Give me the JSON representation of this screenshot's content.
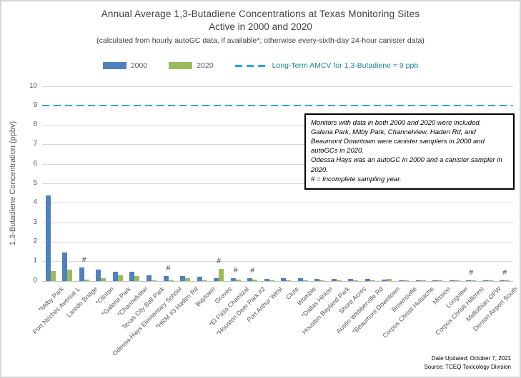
{
  "header": {
    "title_line1": "Annual Average 1,3-Butadiene Concentrations at Texas Monitoring Sites",
    "title_line2": "Active in 2000 and 2020",
    "subtitle": "(calculated from hourly autoGC data, if available*; otherwise every-sixth-day 24-hour canister data)"
  },
  "legend": {
    "series_2000_label": "2000",
    "series_2020_label": "2020",
    "amcv_label": "Long-Term AMCV for 1,3-Butadiene = 9 ppb"
  },
  "colors": {
    "bar_2000": "#4f81bd",
    "bar_2020": "#9bbb59",
    "amcv_line": "#27aae1",
    "grid": "#d9d9d9",
    "axis_text": "#595959",
    "title_text": "#3f3f3f"
  },
  "annotation_box": {
    "lines": [
      "Monitors with data in both 2000 and 2020 were included.",
      "Galena Park, Milby Park, Channelview, Haden Rd, and Beaumont Downtown were canister samplers in 2000 and autoGCs in 2020.",
      "Odessa Hays was an autoGC in 2000 and a canister sampler in 2020.",
      "# = Incomplete sampling year."
    ]
  },
  "footer": {
    "date_line": "Date Updated: October 7, 2021",
    "source_line": "Source: TCEQ Toxicology Division"
  },
  "chart_data": {
    "type": "bar",
    "title": "Annual Average 1,3-Butadiene Concentrations at Texas Monitoring Sites Active in 2000 and 2020",
    "subtitle": "(calculated from hourly autoGC data, if available*; otherwise every-sixth-day 24-hour canister data)",
    "xlabel": "",
    "ylabel": "1,3-Butadiene Concentration (ppbv)",
    "ylim": [
      0,
      10
    ],
    "yticks": [
      0,
      1,
      2,
      3,
      4,
      5,
      6,
      7,
      8,
      9,
      10
    ],
    "grid": true,
    "legend_position": "top",
    "reference_line": {
      "value": 9,
      "label": "Long-Term AMCV for 1,3-Butadiene = 9 ppb",
      "style": "dashed"
    },
    "incomplete_marker": "#",
    "incomplete_marker_meaning": "Incomplete sampling year",
    "categories": [
      "*Milby Park",
      "Port Neches Avenue L",
      "Laredo Bridge",
      "*Clinton",
      "*Galena Park",
      "*Channelview",
      "Texas City Ball Park",
      "Odessa-Hays Elementary School",
      "*HRM #3 Haden Rd",
      "Baytown",
      "Groves",
      "*El Paso Chamizal",
      "*Houston Deer Park #2",
      "Port Arthur West",
      "Clute",
      "Womble",
      "*Dallas Hinton",
      "Houston Bayland Park",
      "Shore Acres",
      "Austin Webberville Rd",
      "*Beaumont Downtown",
      "Brownsville",
      "Corpus Christi Huisache",
      "Mission",
      "Longview",
      "Corpus Christi Hillcrest",
      "Midlothian OFW",
      "Denton Airport South"
    ],
    "series": [
      {
        "name": "2000",
        "values": [
          4.4,
          1.45,
          0.7,
          0.6,
          0.48,
          0.46,
          0.28,
          0.26,
          0.24,
          0.22,
          0.15,
          0.16,
          0.14,
          0.12,
          0.13,
          0.13,
          0.12,
          0.1,
          0.1,
          0.1,
          0.08,
          0.04,
          0.02,
          0.01,
          0.01,
          0.01,
          0.01,
          0.01
        ]
      },
      {
        "name": "2020",
        "values": [
          0.5,
          0.6,
          0.06,
          0.13,
          0.3,
          0.27,
          0.02,
          0.02,
          0.15,
          0.03,
          0.63,
          0.06,
          0.06,
          0.04,
          0.01,
          0.02,
          0.03,
          0.01,
          0.01,
          0.02,
          0.1,
          0.01,
          0.01,
          0.01,
          0.01,
          0.01,
          0.01,
          0.01
        ]
      }
    ],
    "incomplete_flags": [
      0,
      0,
      1,
      0,
      0,
      0,
      0,
      1,
      0,
      0,
      1,
      1,
      1,
      0,
      0,
      0,
      0,
      0,
      0,
      0,
      0,
      0,
      0,
      0,
      0,
      1,
      0,
      1
    ]
  }
}
